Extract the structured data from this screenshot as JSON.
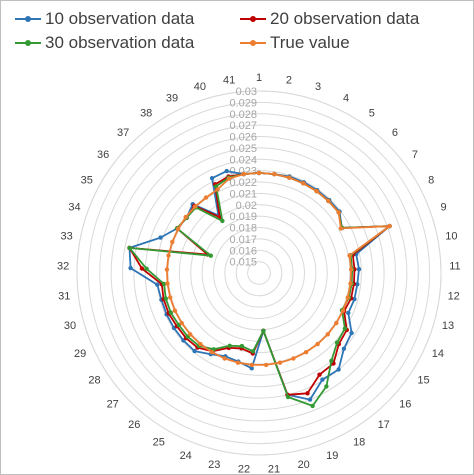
{
  "chart_data": {
    "type": "radar",
    "categories": [
      "1",
      "2",
      "3",
      "4",
      "5",
      "6",
      "7",
      "8",
      "9",
      "10",
      "11",
      "12",
      "13",
      "14",
      "15",
      "16",
      "17",
      "18",
      "19",
      "20",
      "21",
      "22",
      "23",
      "24",
      "25",
      "26",
      "27",
      "28",
      "29",
      "30",
      "31",
      "32",
      "33",
      "34",
      "35",
      "36",
      "37",
      "38",
      "39",
      "40",
      "41"
    ],
    "radial_ticks": [
      "0.015",
      "0.016",
      "0.017",
      "0.018",
      "0.019",
      "0.02",
      "0.021",
      "0.022",
      "0.023",
      "0.024",
      "0.025",
      "0.026",
      "0.027",
      "0.028",
      "0.029",
      "0.03"
    ],
    "rlim": [
      0.014,
      0.03
    ],
    "grid": true,
    "legend_position": "top",
    "series": [
      {
        "name": "10 observation data",
        "color": "#2e75b6",
        "values": [
          0.0228,
          0.0228,
          0.0229,
          0.0229,
          0.0229,
          0.0229,
          0.0229,
          0.0223,
          0.0262,
          0.0227,
          0.0228,
          0.0227,
          0.0227,
          0.0226,
          0.0237,
          0.024,
          0.025,
          0.0249,
          0.026,
          0.025,
          0.0191,
          0.0224,
          0.022,
          0.0219,
          0.0223,
          0.0229,
          0.0229,
          0.0229,
          0.0229,
          0.0229,
          0.023,
          0.0253,
          0.0256,
          0.0232,
          0.0222,
          0.022,
          0.0224,
          0.0202,
          0.0233,
          0.0234,
          0.0228
        ]
      },
      {
        "name": "20 observation data",
        "color": "#c00000",
        "values": [
          0.0228,
          0.0228,
          0.0228,
          0.0228,
          0.0228,
          0.0228,
          0.0228,
          0.0223,
          0.0262,
          0.0224,
          0.0224,
          0.0224,
          0.0224,
          0.0222,
          0.0232,
          0.0234,
          0.0243,
          0.0244,
          0.0254,
          0.025,
          0.0191,
          0.0211,
          0.0208,
          0.0211,
          0.022,
          0.0225,
          0.0226,
          0.0226,
          0.0227,
          0.0227,
          0.0226,
          0.0243,
          0.0256,
          0.0188,
          0.0222,
          0.022,
          0.0222,
          0.02,
          0.0227,
          0.0229,
          0.0228
        ]
      },
      {
        "name": "30 observation data",
        "color": "#339933",
        "values": [
          0.0228,
          0.0228,
          0.0228,
          0.0228,
          0.0228,
          0.0228,
          0.0228,
          0.0223,
          0.0262,
          0.0222,
          0.0222,
          0.0222,
          0.0222,
          0.022,
          0.023,
          0.0232,
          0.024,
          0.0256,
          0.0266,
          0.0252,
          0.0191,
          0.0209,
          0.0206,
          0.0209,
          0.0218,
          0.0223,
          0.0224,
          0.0224,
          0.0225,
          0.0225,
          0.0224,
          0.0239,
          0.0256,
          0.0185,
          0.0222,
          0.022,
          0.022,
          0.0196,
          0.0225,
          0.0228,
          0.0228
        ]
      },
      {
        "name": "True value",
        "color": "#ed7d31",
        "values": [
          0.0228,
          0.0228,
          0.0228,
          0.0228,
          0.0228,
          0.0228,
          0.0228,
          0.0222,
          0.0262,
          0.0221,
          0.0221,
          0.0221,
          0.0221,
          0.0221,
          0.0221,
          0.0221,
          0.0221,
          0.0221,
          0.0221,
          0.0221,
          0.0221,
          0.0221,
          0.0221,
          0.0221,
          0.0221,
          0.0221,
          0.0221,
          0.0221,
          0.0221,
          0.0221,
          0.0221,
          0.0221,
          0.0221,
          0.0221,
          0.0221,
          0.0221,
          0.0221,
          0.0221,
          0.0222,
          0.0227,
          0.0228
        ]
      }
    ]
  }
}
